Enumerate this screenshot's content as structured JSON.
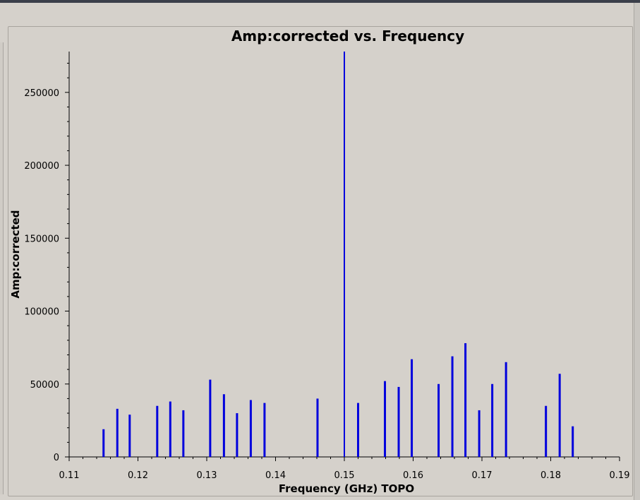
{
  "chart_data": {
    "type": "scatter",
    "title": "Amp:corrected vs. Frequency",
    "xlabel": "Frequency (GHz) TOPO",
    "ylabel": "Amp:corrected",
    "xlim": [
      0.11,
      0.19
    ],
    "ylim": [
      0,
      278000
    ],
    "x_ticks": [
      0.11,
      0.12,
      0.13,
      0.14,
      0.15,
      0.16,
      0.17,
      0.18,
      0.19
    ],
    "x_tick_labels": [
      "0.11",
      "0.12",
      "0.13",
      "0.14",
      "0.15",
      "0.16",
      "0.17",
      "0.18",
      "0.19"
    ],
    "y_ticks": [
      0,
      50000,
      100000,
      150000,
      200000,
      250000
    ],
    "y_tick_labels": [
      "0",
      "50000",
      "100000",
      "150000",
      "200000",
      "250000"
    ],
    "grid": false,
    "marker_color": "#0000dd",
    "series": [
      {
        "points": [
          {
            "x": 0.115,
            "y_min": 0,
            "y_max": 19000
          },
          {
            "x": 0.117,
            "y_min": 0,
            "y_max": 33000
          },
          {
            "x": 0.1188,
            "y_min": 0,
            "y_max": 29000
          },
          {
            "x": 0.1228,
            "y_min": 0,
            "y_max": 35000
          },
          {
            "x": 0.1247,
            "y_min": 0,
            "y_max": 38000
          },
          {
            "x": 0.1266,
            "y_min": 0,
            "y_max": 32000
          },
          {
            "x": 0.1305,
            "y_min": 0,
            "y_max": 53000
          },
          {
            "x": 0.1325,
            "y_min": 0,
            "y_max": 43000
          },
          {
            "x": 0.1344,
            "y_min": 0,
            "y_max": 30000
          },
          {
            "x": 0.1364,
            "y_min": 0,
            "y_max": 39000
          },
          {
            "x": 0.1384,
            "y_min": 0,
            "y_max": 37000
          },
          {
            "x": 0.1461,
            "y_min": 0,
            "y_max": 40000
          },
          {
            "x": 0.15,
            "y_min": 0,
            "y_max": 278000
          },
          {
            "x": 0.152,
            "y_min": 0,
            "y_max": 37000
          },
          {
            "x": 0.1559,
            "y_min": 0,
            "y_max": 52000
          },
          {
            "x": 0.1579,
            "y_min": 0,
            "y_max": 48000
          },
          {
            "x": 0.1598,
            "y_min": 0,
            "y_max": 67000
          },
          {
            "x": 0.1637,
            "y_min": 0,
            "y_max": 50000
          },
          {
            "x": 0.1657,
            "y_min": 0,
            "y_max": 69000
          },
          {
            "x": 0.1676,
            "y_min": 0,
            "y_max": 78000
          },
          {
            "x": 0.1696,
            "y_min": 0,
            "y_max": 32000
          },
          {
            "x": 0.1715,
            "y_min": 0,
            "y_max": 50000
          },
          {
            "x": 0.1735,
            "y_min": 0,
            "y_max": 65000
          },
          {
            "x": 0.1793,
            "y_min": 0,
            "y_max": 35000
          },
          {
            "x": 0.1813,
            "y_min": 0,
            "y_max": 57000
          },
          {
            "x": 0.1832,
            "y_min": 0,
            "y_max": 21000
          }
        ]
      }
    ]
  }
}
